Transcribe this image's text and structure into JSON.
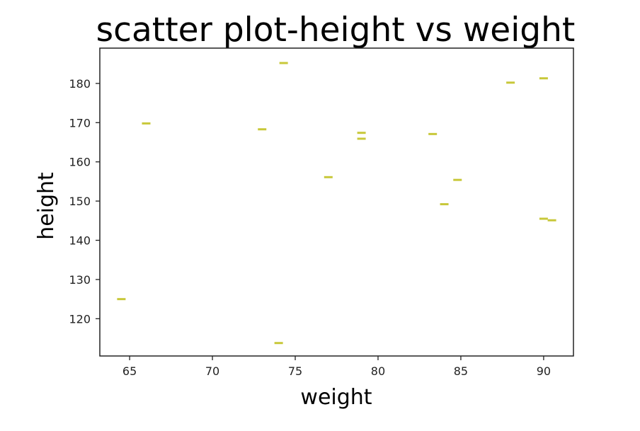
{
  "chart_data": {
    "type": "scatter",
    "title": "scatter plot-height vs weight",
    "xlabel": "weight",
    "ylabel": "height",
    "xlim": [
      63.2,
      91.8
    ],
    "ylim": [
      110.5,
      189.0
    ],
    "xticks": [
      65,
      70,
      75,
      80,
      85,
      90
    ],
    "yticks": [
      120,
      130,
      140,
      150,
      160,
      170,
      180
    ],
    "grid": false,
    "legend": "none",
    "marker": "hline",
    "color": "#c8c83a",
    "series": [
      {
        "x": [
          64.5,
          66.0,
          73.0,
          74.3,
          74.0,
          77.0,
          79.0,
          79.0,
          83.3,
          84.0,
          84.8,
          88.0,
          90.0,
          90.0,
          90.5
        ],
        "y": [
          125.0,
          169.8,
          168.3,
          185.2,
          113.8,
          156.1,
          167.4,
          165.9,
          167.1,
          149.2,
          155.4,
          180.2,
          181.3,
          145.5,
          145.1
        ]
      }
    ]
  }
}
